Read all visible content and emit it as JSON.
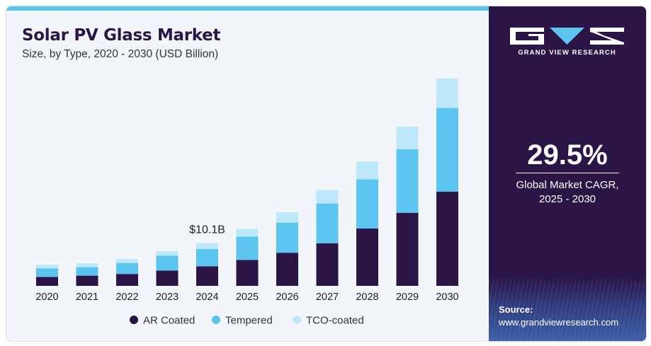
{
  "title": "Solar PV Glass Market",
  "subtitle": "Size, by Type, 2020 - 2030 (USD Billion)",
  "brand": {
    "name": "GRAND VIEW RESEARCH"
  },
  "cagr": {
    "value": "29.5%",
    "label_line1": "Global Market CAGR,",
    "label_line2": "2025 - 2030"
  },
  "source": {
    "label": "Source:",
    "url": "www.grandviewresearch.com"
  },
  "colors": {
    "ar_coated": "#2b1547",
    "tempered": "#5bc4ef",
    "tco_coated": "#bde8fa"
  },
  "chart_data": {
    "type": "bar",
    "stacked": true,
    "categories": [
      "2020",
      "2021",
      "2022",
      "2023",
      "2024",
      "2025",
      "2026",
      "2027",
      "2028",
      "2029",
      "2030"
    ],
    "series": [
      {
        "name": "AR Coated",
        "values": [
          2.1,
          2.4,
          2.8,
          3.6,
          4.6,
          6.1,
          7.8,
          10.0,
          13.5,
          17.2,
          22.2
        ]
      },
      {
        "name": "Tempered",
        "values": [
          2.0,
          2.0,
          2.6,
          3.5,
          4.1,
          5.5,
          7.1,
          9.4,
          11.6,
          15.0,
          19.7
        ]
      },
      {
        "name": "TCO-coated",
        "values": [
          0.9,
          0.9,
          0.9,
          1.1,
          1.4,
          1.8,
          2.4,
          3.2,
          4.2,
          5.3,
          7.0
        ]
      }
    ],
    "annotations": [
      {
        "category": "2024",
        "text": "$10.1B"
      }
    ],
    "legend_position": "bottom",
    "grid": false
  }
}
